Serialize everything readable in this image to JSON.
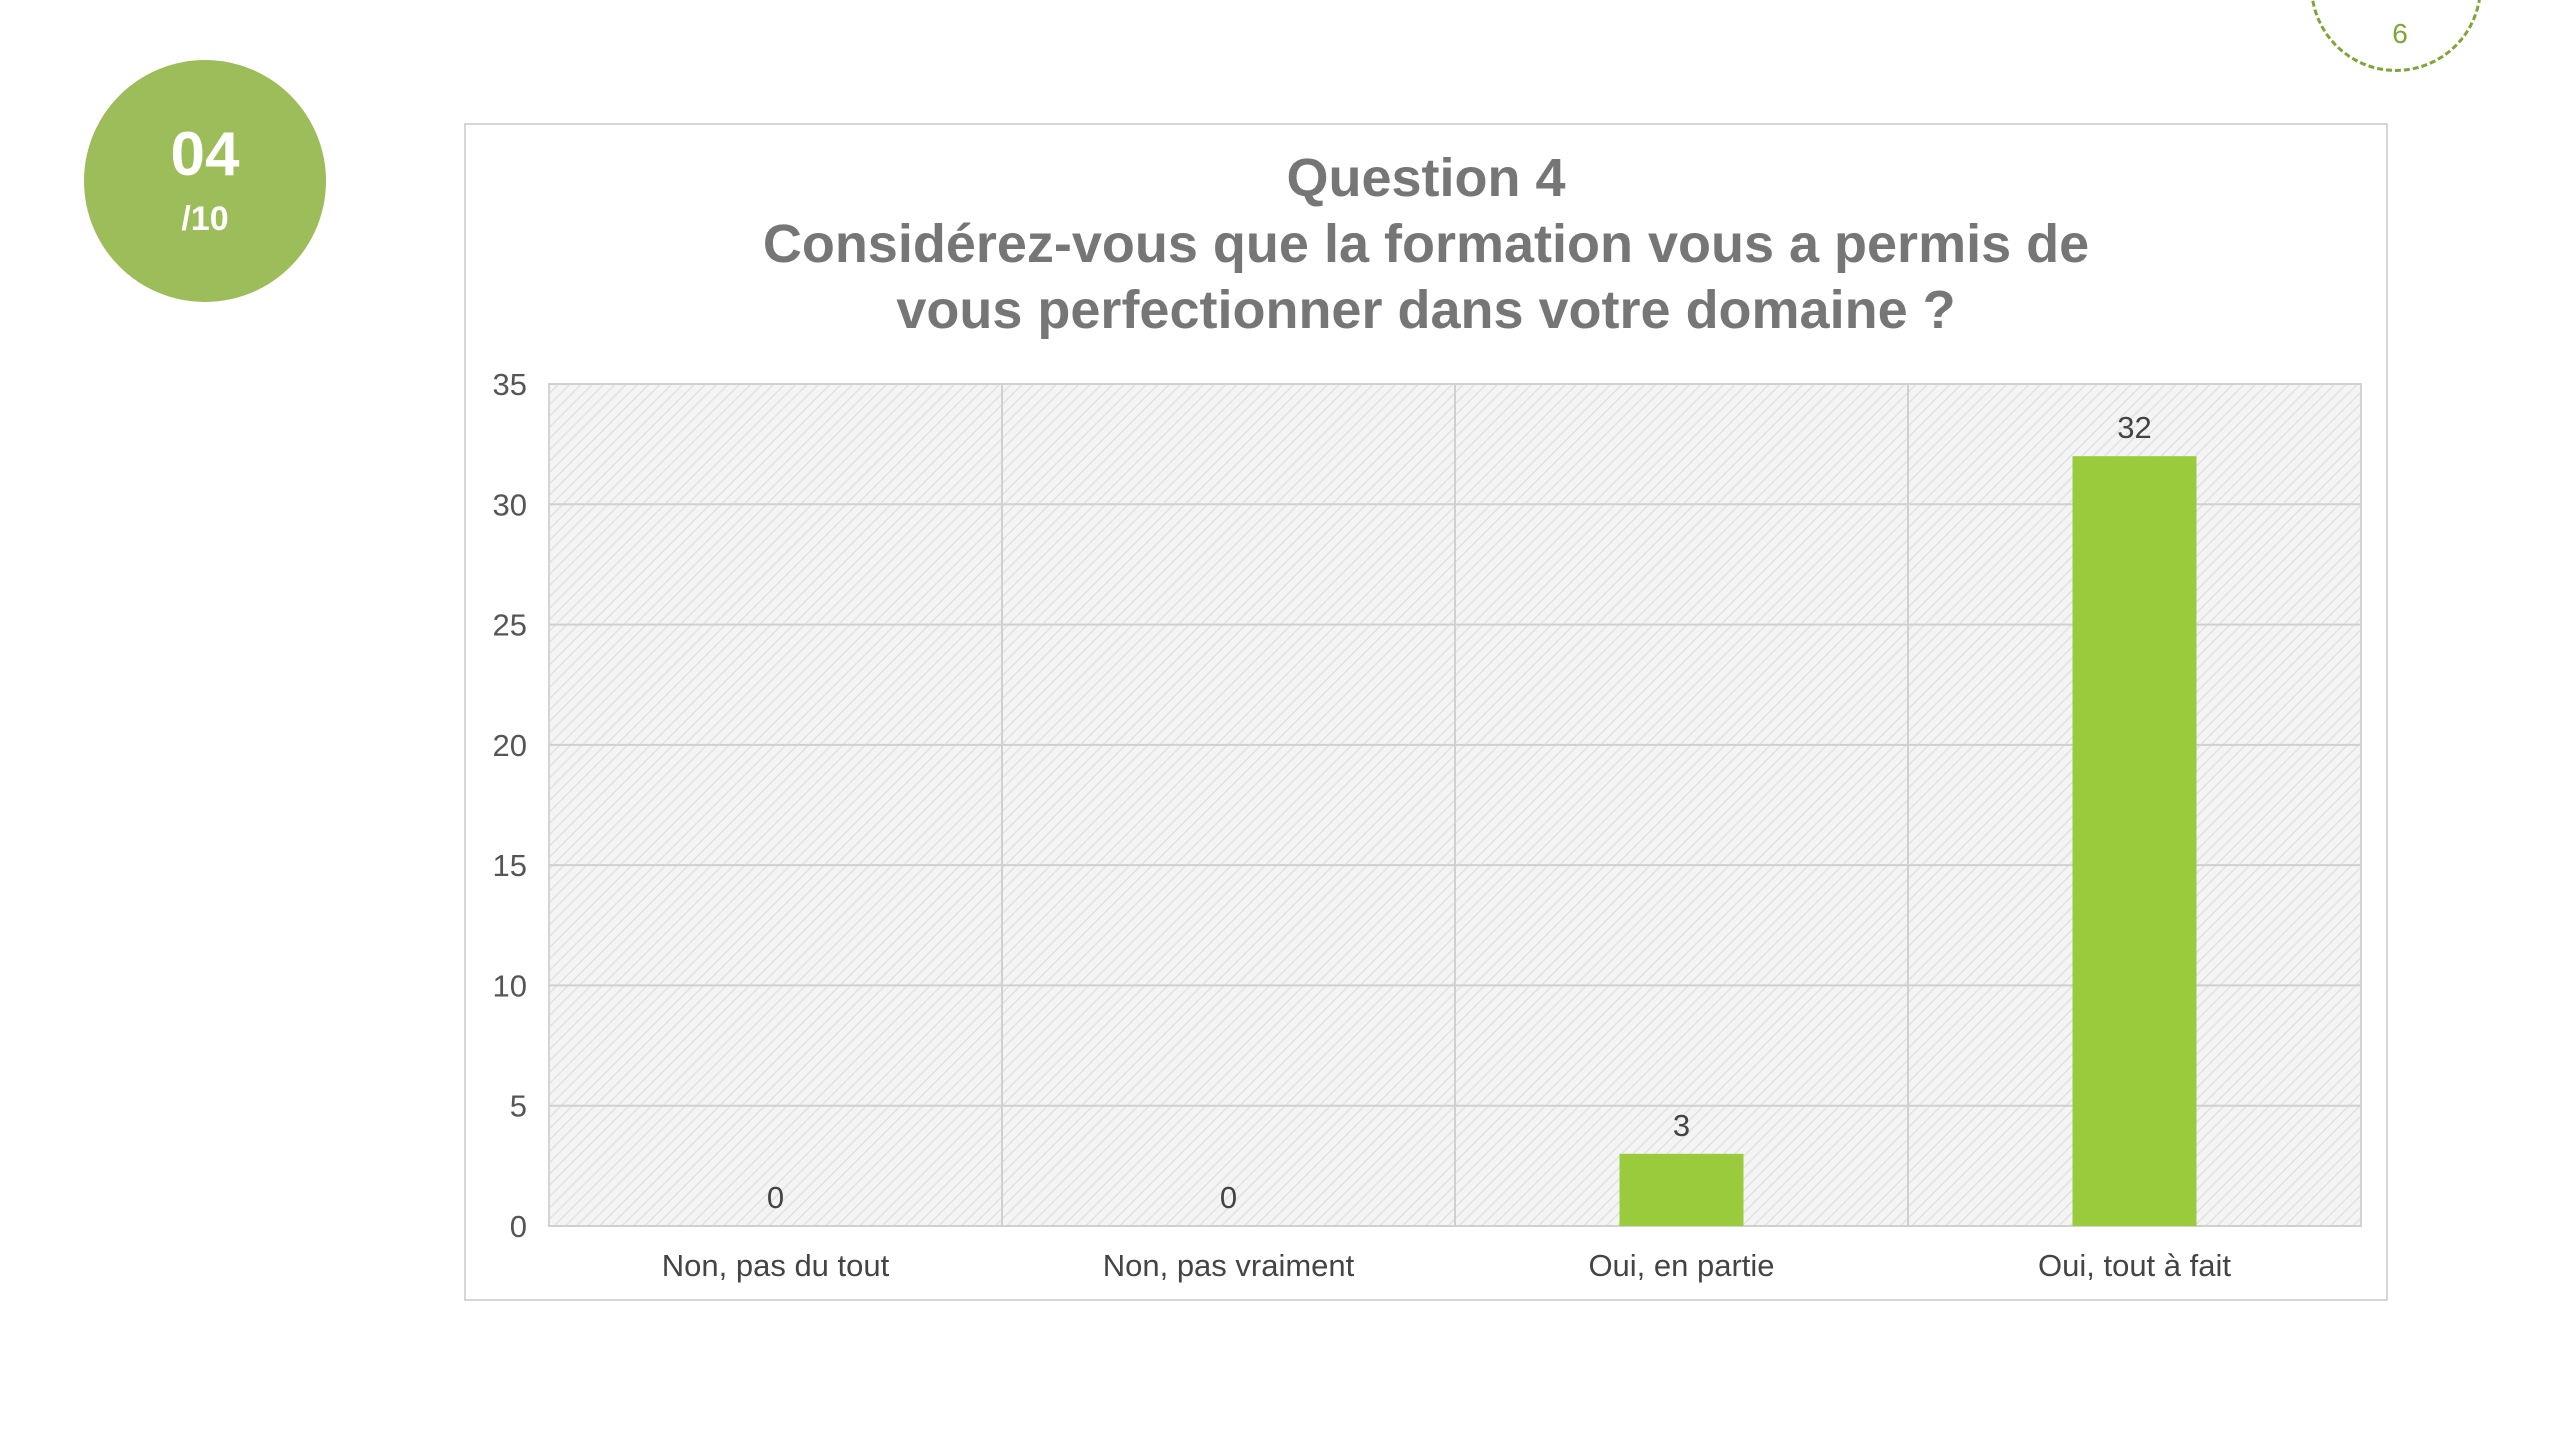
{
  "badge": {
    "number": "04",
    "total": "/10"
  },
  "page_number": "6",
  "colors": {
    "badge": "#9cbd59",
    "bar": "#9acb3c",
    "page_circle": "#7ea43a"
  },
  "chart_data": {
    "type": "bar",
    "title_lines": [
      "Question 4",
      "Considérez-vous que la formation vous a permis de",
      "vous perfectionner dans votre domaine ?"
    ],
    "categories": [
      "Non, pas du tout",
      "Non, pas vraiment",
      "Oui, en partie",
      "Oui, tout à fait"
    ],
    "values": [
      0,
      0,
      3,
      32
    ],
    "data_labels": [
      "0",
      "0",
      "3",
      "32"
    ],
    "ylim": [
      0,
      35
    ],
    "yticks": [
      0,
      5,
      10,
      15,
      20,
      25,
      30,
      35
    ],
    "grid": true,
    "xlabel": "",
    "ylabel": ""
  }
}
